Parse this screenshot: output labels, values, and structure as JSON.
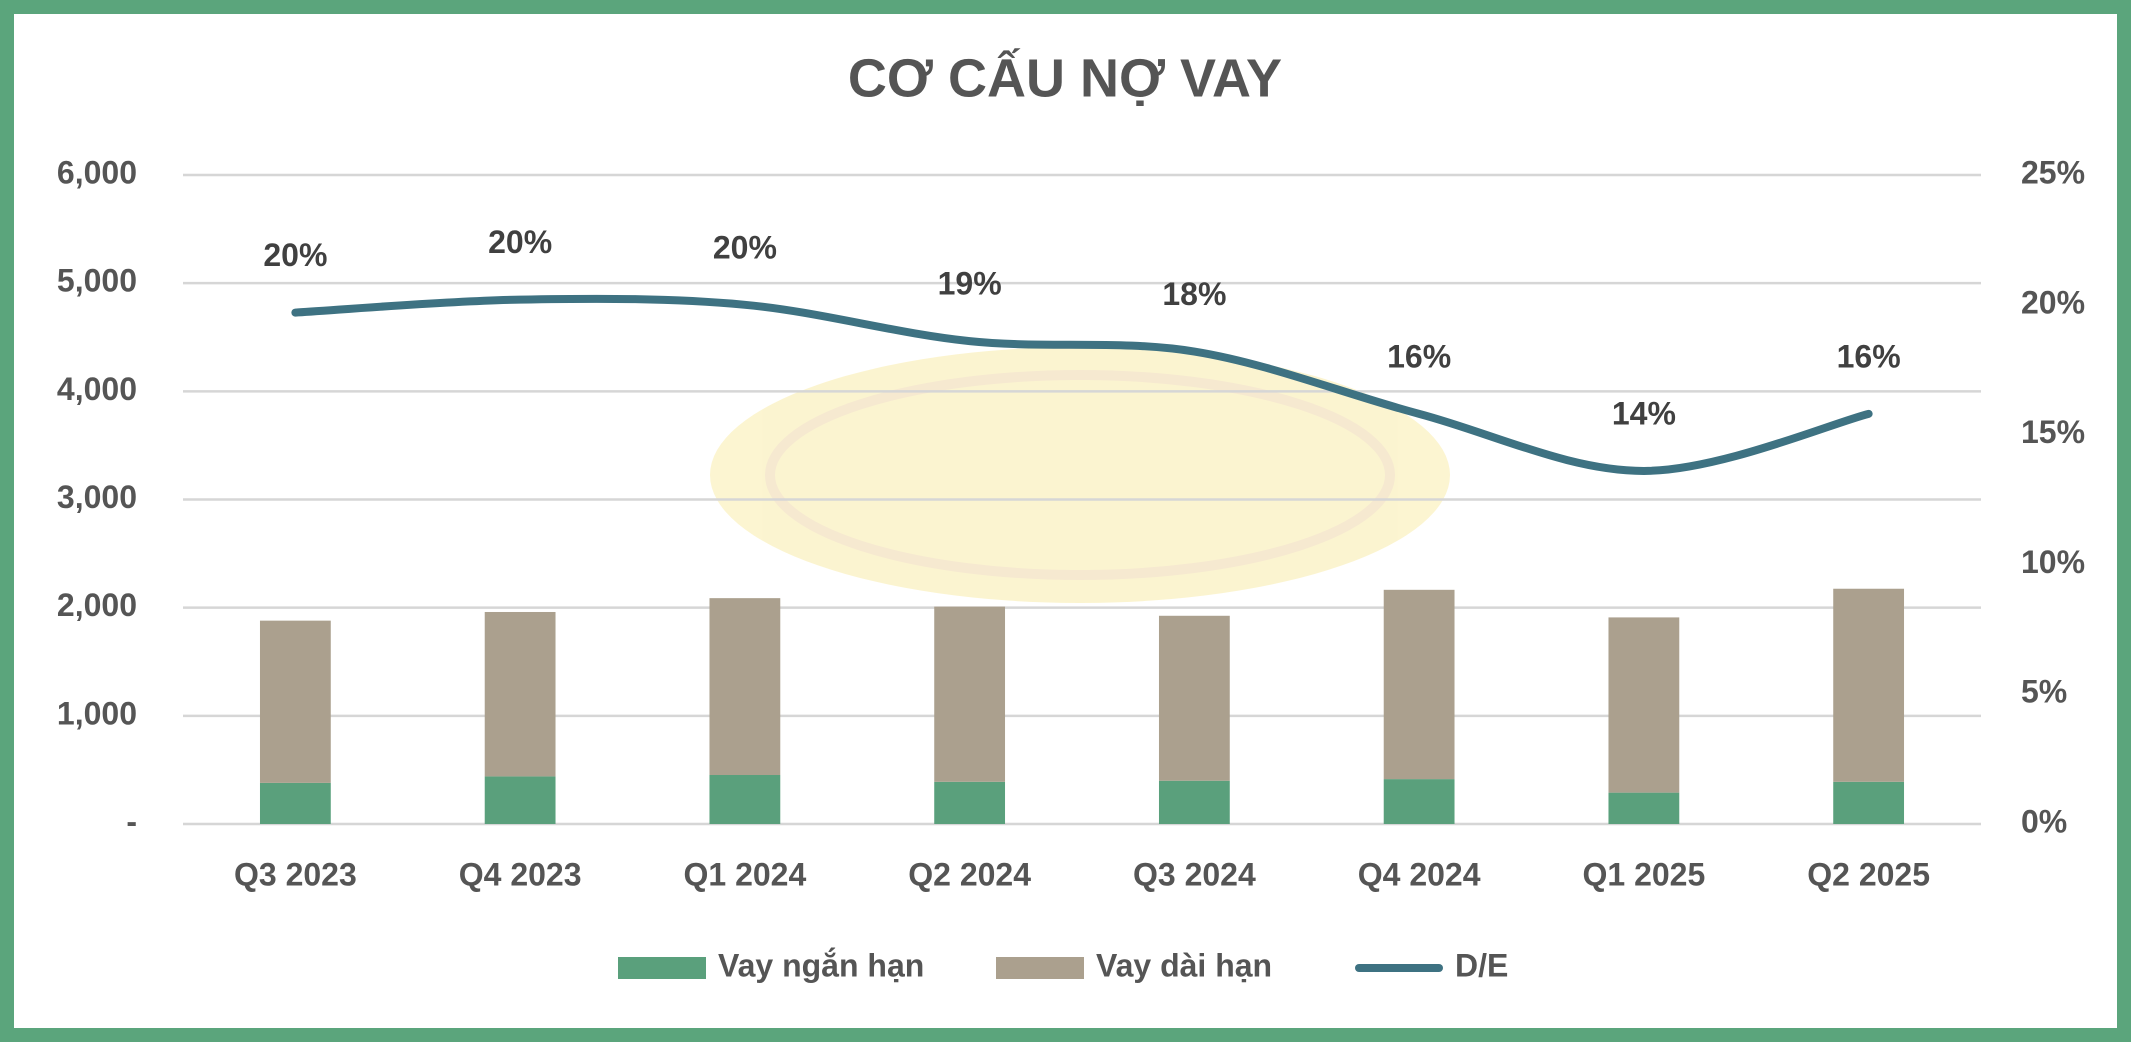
{
  "chart_data": {
    "type": "bar_line",
    "title": "CƠ CẤU NỢ VAY",
    "categories": [
      "Q3 2023",
      "Q4 2023",
      "Q1 2024",
      "Q2 2024",
      "Q3 2024",
      "Q4 2024",
      "Q1 2025",
      "Q2 2025"
    ],
    "series": [
      {
        "name": "Vay ngắn hạn",
        "color": "#5aa07c",
        "type": "bar",
        "stack": "debt",
        "values": [
          380,
          440,
          453,
          390,
          400,
          415,
          290,
          390
        ]
      },
      {
        "name": "Vay dài hạn",
        "color": "#aba08e",
        "type": "bar",
        "stack": "debt",
        "values": [
          1500,
          1520,
          1635,
          1620,
          1525,
          1750,
          1620,
          1785
        ]
      },
      {
        "name": "D/E",
        "color": "#3e7282",
        "type": "line",
        "axis": "y2",
        "values": [
          19.7,
          20.2,
          20.0,
          18.6,
          18.2,
          15.8,
          13.6,
          15.8
        ],
        "value_labels": [
          "20%",
          "20%",
          "20%",
          "19%",
          "18%",
          "16%",
          "14%",
          "16%"
        ]
      }
    ],
    "ylim": [
      0,
      6000
    ],
    "yticks": [
      {
        "value": 0,
        "label": "-"
      },
      {
        "value": 1000,
        "label": "1,000"
      },
      {
        "value": 2000,
        "label": "2,000"
      },
      {
        "value": 3000,
        "label": "3,000"
      },
      {
        "value": 4000,
        "label": "4,000"
      },
      {
        "value": 5000,
        "label": "5,000"
      },
      {
        "value": 6000,
        "label": "6,000"
      }
    ],
    "y2lim": [
      0,
      25
    ],
    "y2ticks": [
      {
        "value": 0,
        "label": "0%"
      },
      {
        "value": 5,
        "label": "5%"
      },
      {
        "value": 10,
        "label": "10%"
      },
      {
        "value": 15,
        "label": "15%"
      },
      {
        "value": 20,
        "label": "20%"
      },
      {
        "value": 25,
        "label": "25%"
      }
    ],
    "grid": true,
    "legend": "bottom"
  }
}
